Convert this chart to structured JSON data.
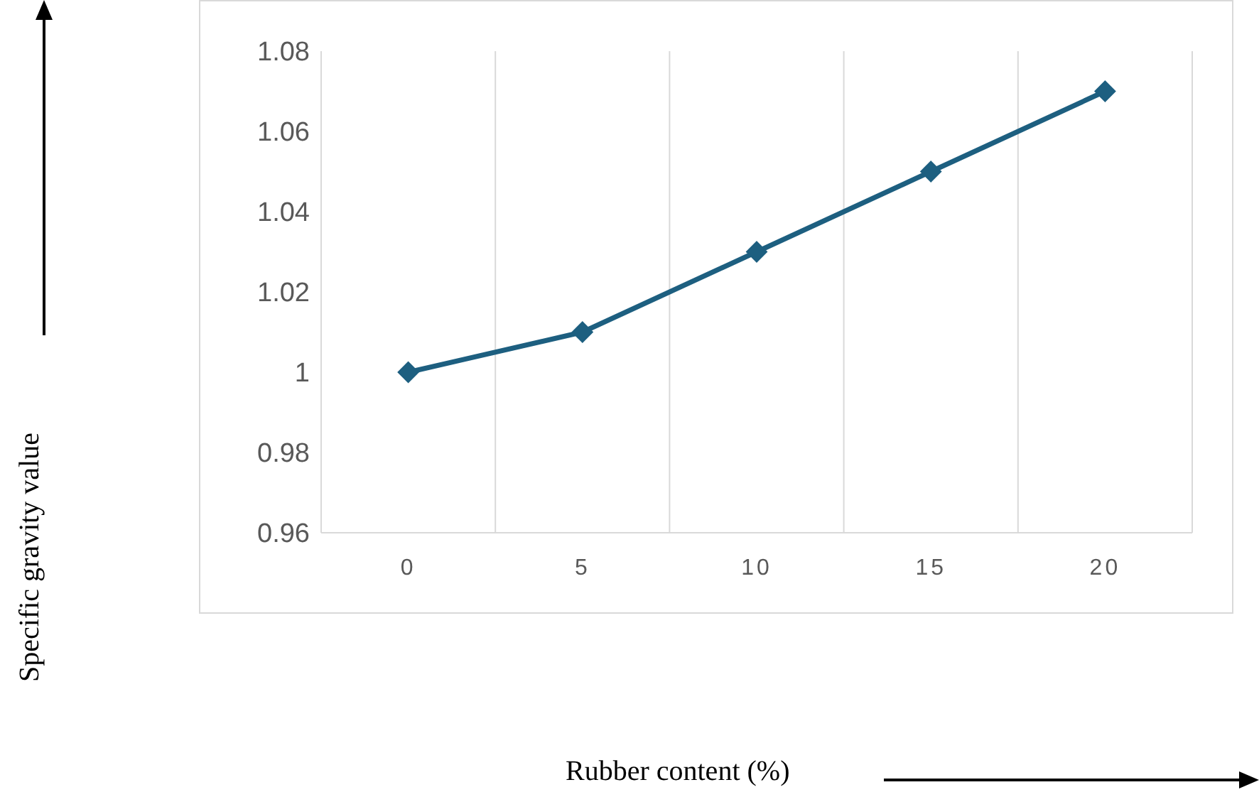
{
  "chart_data": {
    "type": "line",
    "annotations": [
      "Specific gravity value",
      "Rubber content (%)"
    ],
    "categories": [
      "0",
      "5",
      "10",
      "15",
      "20"
    ],
    "series": [
      {
        "color": "#1d5f80",
        "values": [
          1.0,
          1.01,
          1.03,
          1.05,
          1.07
        ]
      }
    ],
    "ylim": [
      0.96,
      1.08
    ],
    "yticks": [
      0.96,
      0.98,
      1.0,
      1.02,
      1.04,
      1.06,
      1.08
    ],
    "grid": "x",
    "marker": "diamond",
    "legend": false
  }
}
